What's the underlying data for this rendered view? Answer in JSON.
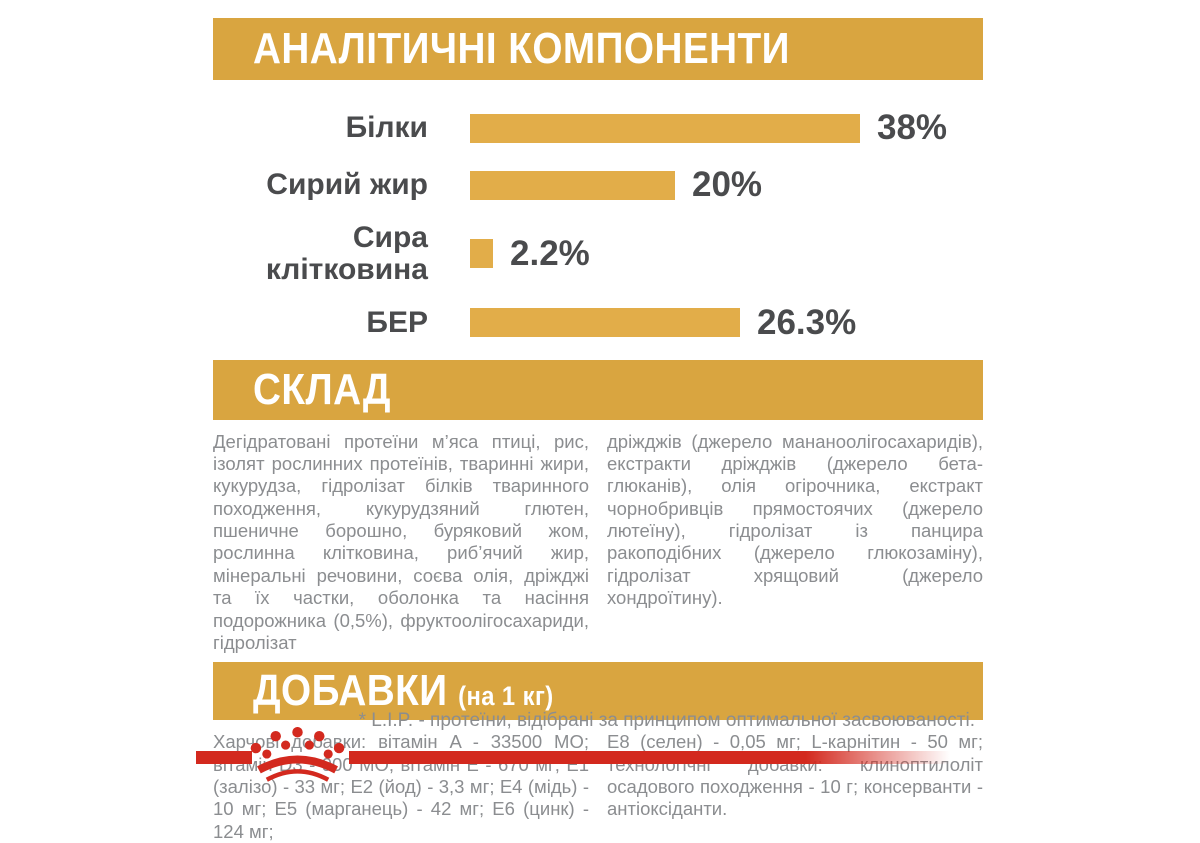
{
  "colors": {
    "gold": "#D9A540",
    "bar_gold": "#E2AD49",
    "dark_text": "#4A4B4D",
    "body_text": "#8B8D90",
    "red": "#D3291E",
    "banner_text": "#FFFFFF"
  },
  "sections": {
    "analytical": {
      "title": "АНАЛІТИЧНІ КОМПОНЕНТИ"
    },
    "composition": {
      "title": "СКЛАД",
      "col_left": "Дегідратовані протеїни м’яса птиці, рис, ізолят рослинних протеїнів, тваринні жири, кукурудза, гідролізат білків тваринного походження, кукурудзяний глютен, пшеничне борошно, буряковий жом, рослинна клітковина, риб’ячий жир, мінеральні речовини, соєва олія, дріжджі та їх частки, оболонка та насіння подорожника (0,5%), фруктоолігосахариди, гідролізат",
      "col_right": "дріжджів (джерело мананоолігосахаридів), екстракти дріжджів (джерело бета-глюканів), олія огірочника, екстракт чорнобривців прямостоячих (джерело лютеїну), гідролізат із панцира ракоподібних (джерело глюкозаміну), гідролізат хрящовий (джерело хондроїтину)."
    },
    "additives": {
      "title": "ДОБАВКИ",
      "title_suffix": "(на 1 кг)",
      "col_left": "Харчові добавки: вітамін A - 33500 МО; вітамін D3 - 900 МО; вітамін E - 670 мг; E1 (залізо) - 33 мг; E2 (йод) - 3,3 мг; E4 (мідь) - 10 мг; E5 (марганець) - 42 мг; E6 (цинк) - 124 мг;",
      "col_right": "E8 (селен) - 0,05 мг; L-карнітин - 50 мг; технологічні добавки: клиноптилоліт осадового походження - 10 г; консерванти - антіоксіданти."
    },
    "footnote": "* L.I.P. - протеїни, відібрані за принципом оптимальної засвоюваності."
  },
  "chart_data": {
    "type": "bar",
    "orientation": "horizontal",
    "title": "АНАЛІТИЧНІ КОМПОНЕНТИ",
    "categories": [
      "Білки",
      "Сирий жир",
      "Сира клітковина",
      "БЕР"
    ],
    "values": [
      38,
      20,
      2.2,
      26.3
    ],
    "value_labels": [
      "38%",
      "20%",
      "2.2%",
      "26.3%"
    ],
    "unit": "%",
    "xlim": [
      0,
      50
    ],
    "grid": false,
    "legend": "none",
    "bar_color": "#E2AD49"
  },
  "logo": {
    "name": "royal-canin-crown",
    "color": "#D3291E"
  }
}
